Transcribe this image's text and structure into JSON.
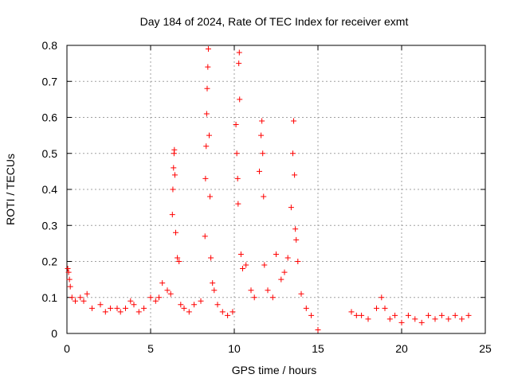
{
  "chart_data": {
    "type": "scatter",
    "title": "Day 184 of 2024, Rate Of TEC Index for receiver exmt",
    "xlabel": "GPS time / hours",
    "ylabel": "ROTI / TECUs",
    "xlim": [
      0,
      25
    ],
    "ylim": [
      0,
      0.8
    ],
    "xticks": [
      0,
      5,
      10,
      15,
      20,
      25
    ],
    "yticks": [
      0,
      0.1,
      0.2,
      0.3,
      0.4,
      0.5,
      0.6,
      0.7,
      0.8
    ],
    "grid": true,
    "marker": "+",
    "color": "#ff0000",
    "series": [
      {
        "name": "ROTI",
        "points": [
          [
            0.05,
            0.18
          ],
          [
            0.1,
            0.17
          ],
          [
            0.15,
            0.15
          ],
          [
            0.2,
            0.13
          ],
          [
            0.3,
            0.1
          ],
          [
            0.5,
            0.09
          ],
          [
            0.8,
            0.1
          ],
          [
            1.0,
            0.09
          ],
          [
            1.2,
            0.11
          ],
          [
            1.5,
            0.07
          ],
          [
            2.0,
            0.08
          ],
          [
            2.3,
            0.06
          ],
          [
            2.6,
            0.07
          ],
          [
            3.0,
            0.07
          ],
          [
            3.2,
            0.06
          ],
          [
            3.5,
            0.07
          ],
          [
            3.8,
            0.09
          ],
          [
            4.0,
            0.08
          ],
          [
            4.3,
            0.06
          ],
          [
            4.6,
            0.07
          ],
          [
            5.0,
            0.1
          ],
          [
            5.3,
            0.09
          ],
          [
            5.5,
            0.1
          ],
          [
            5.7,
            0.14
          ],
          [
            6.0,
            0.12
          ],
          [
            6.2,
            0.11
          ],
          [
            6.3,
            0.33
          ],
          [
            6.33,
            0.4
          ],
          [
            6.37,
            0.46
          ],
          [
            6.4,
            0.5
          ],
          [
            6.42,
            0.51
          ],
          [
            6.45,
            0.44
          ],
          [
            6.5,
            0.28
          ],
          [
            6.6,
            0.21
          ],
          [
            6.7,
            0.2
          ],
          [
            6.8,
            0.08
          ],
          [
            7.0,
            0.07
          ],
          [
            7.3,
            0.06
          ],
          [
            7.6,
            0.08
          ],
          [
            8.0,
            0.09
          ],
          [
            8.25,
            0.27
          ],
          [
            8.28,
            0.43
          ],
          [
            8.32,
            0.52
          ],
          [
            8.35,
            0.61
          ],
          [
            8.38,
            0.68
          ],
          [
            8.42,
            0.74
          ],
          [
            8.45,
            0.79
          ],
          [
            8.5,
            0.55
          ],
          [
            8.55,
            0.38
          ],
          [
            8.6,
            0.21
          ],
          [
            8.7,
            0.14
          ],
          [
            8.8,
            0.12
          ],
          [
            9.0,
            0.08
          ],
          [
            9.3,
            0.06
          ],
          [
            9.6,
            0.05
          ],
          [
            9.9,
            0.06
          ],
          [
            10.1,
            0.58
          ],
          [
            10.15,
            0.5
          ],
          [
            10.2,
            0.43
          ],
          [
            10.23,
            0.36
          ],
          [
            10.27,
            0.75
          ],
          [
            10.3,
            0.78
          ],
          [
            10.32,
            0.65
          ],
          [
            10.4,
            0.22
          ],
          [
            10.5,
            0.18
          ],
          [
            10.7,
            0.19
          ],
          [
            11.0,
            0.12
          ],
          [
            11.2,
            0.1
          ],
          [
            11.5,
            0.45
          ],
          [
            11.6,
            0.55
          ],
          [
            11.65,
            0.59
          ],
          [
            11.7,
            0.5
          ],
          [
            11.75,
            0.38
          ],
          [
            11.8,
            0.19
          ],
          [
            12.0,
            0.12
          ],
          [
            12.3,
            0.1
          ],
          [
            12.5,
            0.22
          ],
          [
            12.8,
            0.15
          ],
          [
            13.0,
            0.17
          ],
          [
            13.2,
            0.21
          ],
          [
            13.4,
            0.35
          ],
          [
            13.5,
            0.5
          ],
          [
            13.55,
            0.59
          ],
          [
            13.6,
            0.44
          ],
          [
            13.65,
            0.29
          ],
          [
            13.7,
            0.26
          ],
          [
            13.8,
            0.2
          ],
          [
            14.0,
            0.11
          ],
          [
            14.3,
            0.07
          ],
          [
            14.6,
            0.05
          ],
          [
            15.0,
            0.01
          ],
          [
            17.0,
            0.06
          ],
          [
            17.3,
            0.05
          ],
          [
            17.6,
            0.05
          ],
          [
            18.0,
            0.04
          ],
          [
            18.5,
            0.07
          ],
          [
            18.8,
            0.1
          ],
          [
            19.0,
            0.07
          ],
          [
            19.3,
            0.04
          ],
          [
            19.6,
            0.05
          ],
          [
            20.0,
            0.03
          ],
          [
            20.4,
            0.05
          ],
          [
            20.8,
            0.04
          ],
          [
            21.2,
            0.03
          ],
          [
            21.6,
            0.05
          ],
          [
            22.0,
            0.04
          ],
          [
            22.4,
            0.05
          ],
          [
            22.8,
            0.04
          ],
          [
            23.2,
            0.05
          ],
          [
            23.6,
            0.04
          ],
          [
            24.0,
            0.05
          ]
        ]
      }
    ]
  }
}
